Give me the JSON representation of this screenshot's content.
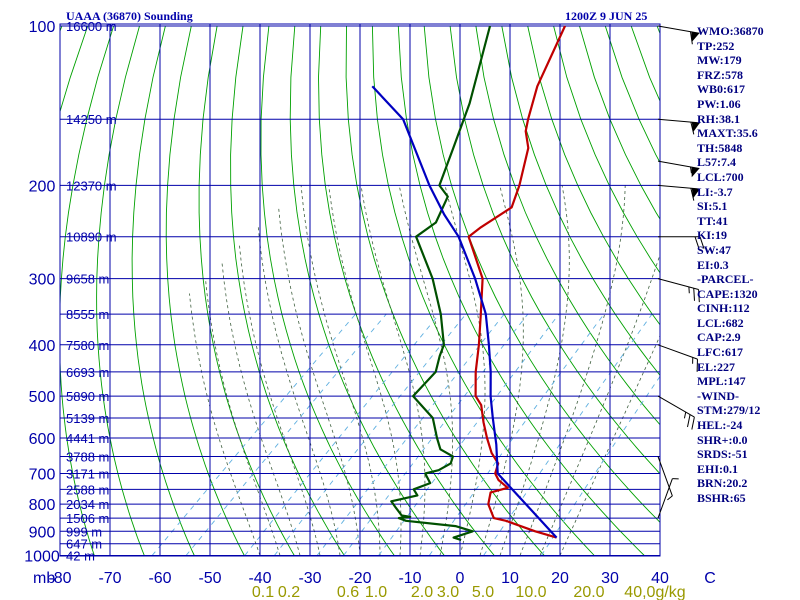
{
  "header": {
    "station": "UAAA (36870) Sounding",
    "datetime": "1200Z  9 JUN 25"
  },
  "indices": [
    "WMO:36870",
    "TP:252",
    "MW:179",
    "FRZ:578",
    "WB0:617",
    "PW:1.06",
    "RH:38.1",
    "MAXT:35.6",
    "TH:5848",
    "L57:7.4",
    "LCL:700",
    "LI:-3.7",
    "SI:5.1",
    "TT:41",
    "KI:19",
    "SW:47",
    "EI:0.3",
    "-PARCEL-",
    "CAPE:1320",
    "CINH:112",
    "LCL:682",
    "CAP:2.9",
    "LFC:617",
    "EL:227",
    "MPL:147",
    "-WIND-",
    "STM:279/12",
    "HEL:-24",
    "SHR+:0.0",
    "SRDS:-51",
    "EHI:0.1",
    "BRN:20.2",
    "BSHR:65"
  ],
  "colors": {
    "grid": "#0000aa",
    "dry_adiabat": "#00a000",
    "moist_adiabat": "#406040",
    "mixing_ratio": "#60b0e0",
    "temperature": "#c00000",
    "dewpoint": "#005000",
    "parcel": "#0000c0",
    "wind": "#000000"
  },
  "chart_data": {
    "type": "line",
    "title": "UAAA (36870) Sounding",
    "xlabel": "C",
    "ylabel": "mb",
    "pressure_levels": [
      100,
      200,
      300,
      400,
      500,
      600,
      700,
      800,
      900,
      1000
    ],
    "pressure_ticks": [
      "100",
      "200",
      "300",
      "400",
      "500",
      "600",
      "700",
      "800",
      "900",
      "1000"
    ],
    "x_ticks": [
      -80,
      -70,
      -60,
      -50,
      -40,
      -30,
      -20,
      -10,
      0,
      10,
      20,
      30,
      40
    ],
    "x_tick_labels": [
      "-80",
      "-70",
      "-60",
      "-50",
      "-40",
      "-30",
      "-20",
      "-10",
      "0",
      "10",
      "20",
      "30",
      "40",
      "C"
    ],
    "ylabel_text": "mb",
    "mixing_ratio_labels": [
      "0.1",
      "0.2",
      "0.6",
      "1.0",
      "2.0",
      "3.0",
      "5.0",
      "10.0",
      "20.0",
      "40,0g/kg"
    ],
    "height_labels": [
      {
        "p": 100,
        "text": "16600 m"
      },
      {
        "p": 150,
        "text": "14250 m"
      },
      {
        "p": 200,
        "text": "12370 m"
      },
      {
        "p": 250,
        "text": "10890 m"
      },
      {
        "p": 300,
        "text": "9658 m"
      },
      {
        "p": 350,
        "text": "8555 m"
      },
      {
        "p": 400,
        "text": "7580 m"
      },
      {
        "p": 450,
        "text": "6693 m"
      },
      {
        "p": 500,
        "text": "5890 m"
      },
      {
        "p": 550,
        "text": "5139 m"
      },
      {
        "p": 600,
        "text": "4441 m"
      },
      {
        "p": 650,
        "text": "3788 m"
      },
      {
        "p": 700,
        "text": "3171 m"
      },
      {
        "p": 750,
        "text": "2588 m"
      },
      {
        "p": 800,
        "text": "2034 m"
      },
      {
        "p": 850,
        "text": "1506 m"
      },
      {
        "p": 900,
        "text": "999 m"
      },
      {
        "p": 950,
        "text": "647 m"
      },
      {
        "p": 1000,
        "text": "42 m"
      }
    ],
    "series": [
      {
        "key": "temperature",
        "values": [
          [
            925,
            35.6
          ],
          [
            900,
            30
          ],
          [
            860,
            22
          ],
          [
            850,
            19
          ],
          [
            800,
            15
          ],
          [
            760,
            13
          ],
          [
            745,
            15.5
          ],
          [
            720,
            12
          ],
          [
            700,
            10
          ],
          [
            670,
            8.5
          ],
          [
            640,
            5
          ],
          [
            600,
            1
          ],
          [
            560,
            -3
          ],
          [
            520,
            -7
          ],
          [
            500,
            -10
          ],
          [
            450,
            -15
          ],
          [
            400,
            -20
          ],
          [
            350,
            -26
          ],
          [
            300,
            -33
          ],
          [
            250,
            -44.5
          ],
          [
            240,
            -44
          ],
          [
            220,
            -42
          ],
          [
            200,
            -45
          ],
          [
            170,
            -51
          ],
          [
            158,
            -55
          ],
          [
            150,
            -57
          ],
          [
            130,
            -62
          ],
          [
            100,
            -69
          ]
        ]
      },
      {
        "key": "dewpoint",
        "values": [
          [
            935,
            17
          ],
          [
            925,
            15
          ],
          [
            900,
            17.5
          ],
          [
            880,
            13
          ],
          [
            860,
            2
          ],
          [
            850,
            0
          ],
          [
            845,
            2
          ],
          [
            840,
            0
          ],
          [
            810,
            -3
          ],
          [
            790,
            -5
          ],
          [
            770,
            -1
          ],
          [
            750,
            -3
          ],
          [
            730,
            -1
          ],
          [
            700,
            -4
          ],
          [
            690,
            -2
          ],
          [
            670,
            -1
          ],
          [
            650,
            -2
          ],
          [
            630,
            -6
          ],
          [
            600,
            -9
          ],
          [
            550,
            -14
          ],
          [
            500,
            -22.5
          ],
          [
            450,
            -23
          ],
          [
            420,
            -25.5
          ],
          [
            400,
            -27
          ],
          [
            350,
            -34
          ],
          [
            300,
            -43
          ],
          [
            250,
            -55
          ],
          [
            235,
            -54
          ],
          [
            210,
            -57
          ],
          [
            200,
            -61
          ],
          [
            170,
            -66
          ],
          [
            140,
            -72
          ],
          [
            100,
            -84
          ]
        ]
      },
      {
        "key": "parcel",
        "values": [
          [
            925,
            35.6
          ],
          [
            700,
            10.5
          ],
          [
            617,
            4.2
          ],
          [
            550,
            -2
          ],
          [
            500,
            -7
          ],
          [
            450,
            -12
          ],
          [
            400,
            -18
          ],
          [
            350,
            -25
          ],
          [
            300,
            -34.5
          ],
          [
            250,
            -46.5
          ],
          [
            227,
            -54
          ],
          [
            200,
            -63
          ],
          [
            150,
            -82
          ],
          [
            130,
            -95
          ]
        ]
      }
    ],
    "wind_barbs": [
      {
        "p": 100,
        "dir": 280,
        "speed_kt": 60
      },
      {
        "p": 150,
        "dir": 275,
        "speed_kt": 60
      },
      {
        "p": 180,
        "dir": 280,
        "speed_kt": 55
      },
      {
        "p": 200,
        "dir": 275,
        "speed_kt": 60
      },
      {
        "p": 250,
        "dir": 270,
        "speed_kt": 20
      },
      {
        "p": 300,
        "dir": 285,
        "speed_kt": 25
      },
      {
        "p": 400,
        "dir": 290,
        "speed_kt": 15
      },
      {
        "p": 500,
        "dir": 300,
        "speed_kt": 25
      },
      {
        "p": 650,
        "dir": 340,
        "speed_kt": 5
      },
      {
        "p": 850,
        "dir": 200,
        "speed_kt": 5
      }
    ]
  }
}
